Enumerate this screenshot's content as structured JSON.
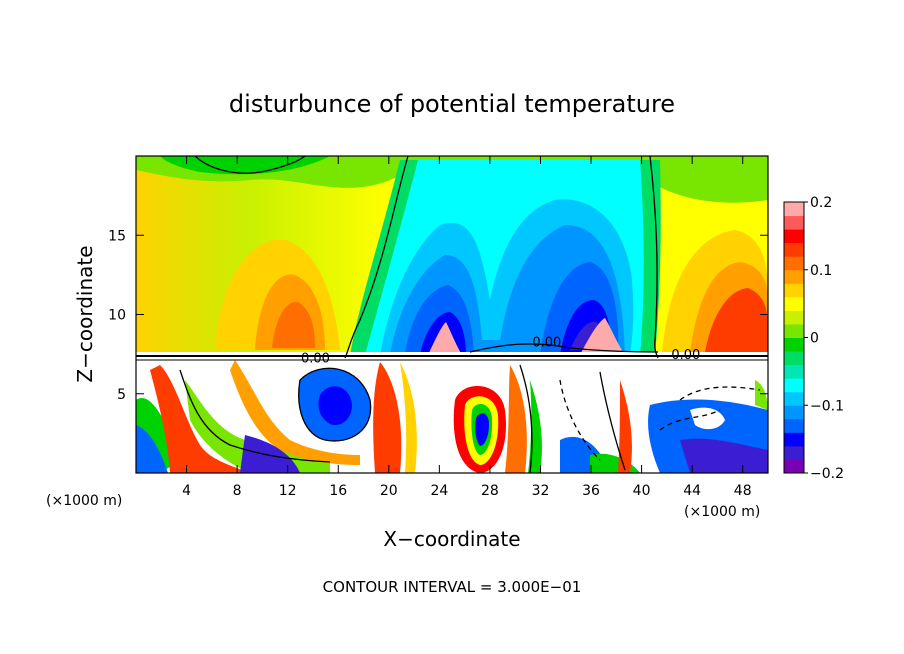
{
  "chart_data": {
    "type": "heatmap",
    "title": "disturbunce of potential temperature",
    "xlabel": "X−coordinate",
    "ylabel": "Z−coordinate",
    "x_unit_left": "(×1000 m)",
    "x_unit_right": "(×1000 m)",
    "footer": "CONTOUR INTERVAL = 3.000E−01",
    "xlim": [
      0,
      50
    ],
    "ylim": [
      0,
      20
    ],
    "x_ticks": [
      4,
      8,
      12,
      16,
      20,
      24,
      28,
      32,
      36,
      40,
      44,
      48
    ],
    "x_tick_labels": [
      "4",
      "8",
      "12",
      "16",
      "20",
      "24",
      "28",
      "32",
      "36",
      "40",
      "44",
      "48"
    ],
    "y_ticks": [
      5,
      10,
      15
    ],
    "y_tick_labels": [
      "5",
      "10",
      "15"
    ],
    "colorbar": {
      "range": [
        -0.2,
        0.2
      ],
      "ticks": [
        0.2,
        0.1,
        0,
        -0.1,
        -0.2
      ],
      "tick_labels": [
        "0.2",
        "0.1",
        "0",
        "−0.1",
        "−0.2"
      ],
      "colors": [
        "#7a00b4",
        "#3c1ed2",
        "#0000ff",
        "#0064ff",
        "#0096ff",
        "#00c8ff",
        "#00ffff",
        "#00e6b4",
        "#00dc64",
        "#00d200",
        "#78e600",
        "#c8f000",
        "#ffff00",
        "#ffd200",
        "#ffa000",
        "#ff6e00",
        "#ff3c00",
        "#ff0000",
        "#ff5a5a",
        "#ffaaaa"
      ]
    },
    "contour_labels": [
      {
        "text": "0.00",
        "x": 14.2,
        "z": 7.3
      },
      {
        "text": "0.00",
        "x": 32.5,
        "z": 8.3
      },
      {
        "text": "0.00",
        "x": 43.5,
        "z": 7.5
      }
    ],
    "grid": false,
    "legend": "colorbar-right"
  }
}
